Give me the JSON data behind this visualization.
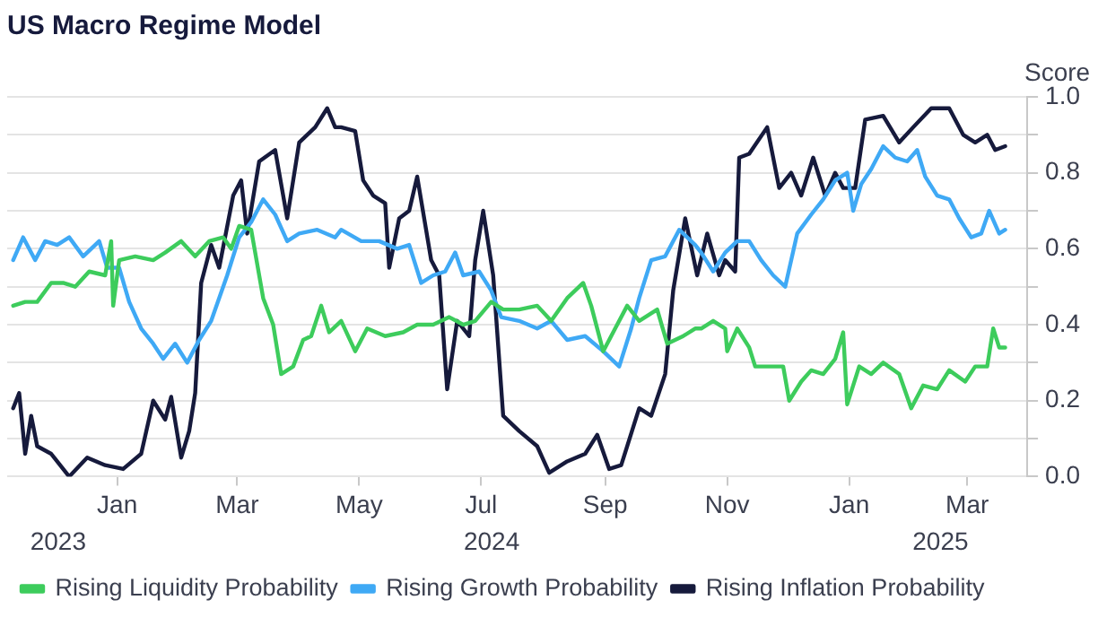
{
  "chart_data": {
    "type": "line",
    "title": "US Macro Regime Model",
    "ylabel": "Score",
    "xlim": [
      "2023-11-07",
      "2025-03-31"
    ],
    "xticks": [
      {
        "value": "2024-01-01",
        "label": "Jan"
      },
      {
        "value": "2024-03-01",
        "label": "Mar"
      },
      {
        "value": "2024-05-01",
        "label": "May"
      },
      {
        "value": "2024-07-01",
        "label": "Jul"
      },
      {
        "value": "2024-09-01",
        "label": "Sep"
      },
      {
        "value": "2024-11-01",
        "label": "Nov"
      },
      {
        "value": "2025-01-01",
        "label": "Jan"
      },
      {
        "value": "2025-03-01",
        "label": "Mar"
      }
    ],
    "annotations": [
      "2023",
      "2024",
      "2025"
    ],
    "ylim": [
      0,
      1
    ],
    "yticks": [
      {
        "value": 0,
        "label": "0.0"
      },
      {
        "value": 0.1,
        "label": null
      },
      0.2,
      {
        "value": 0.3,
        "label": null
      },
      0.4,
      {
        "value": 0.5,
        "label": null
      },
      0.6,
      {
        "value": 0.7,
        "label": null
      },
      0.8,
      {
        "value": 0.9,
        "label": null
      },
      {
        "value": 1,
        "label": "1.0"
      }
    ],
    "grid": "y",
    "legend": "bottom",
    "marker": "none",
    "line_style": "solid",
    "series": [
      {
        "name": "Rising Liquidity Probability",
        "color": "#3dcc5c",
        "x": [
          "2023-11-10",
          "2023-11-16",
          "2023-11-22",
          "2023-11-29",
          "2023-12-05",
          "2023-12-11",
          "2023-12-18",
          "2023-12-26",
          "2023-12-29",
          "2023-12-30",
          "2024-01-02",
          "2024-01-10",
          "2024-01-19",
          "2024-01-25",
          "2024-02-02",
          "2024-02-09",
          "2024-02-16",
          "2024-02-23",
          "2024-02-27",
          "2024-03-02",
          "2024-03-08",
          "2024-03-14",
          "2024-03-19",
          "2024-03-23",
          "2024-03-29",
          "2024-04-03",
          "2024-04-07",
          "2024-04-12",
          "2024-04-16",
          "2024-04-22",
          "2024-04-29",
          "2024-05-05",
          "2024-05-14",
          "2024-05-23",
          "2024-05-30",
          "2024-06-07",
          "2024-06-15",
          "2024-06-22",
          "2024-06-28",
          "2024-07-06",
          "2024-07-12",
          "2024-07-20",
          "2024-07-29",
          "2024-08-05",
          "2024-08-13",
          "2024-08-21",
          "2024-08-25",
          "2024-08-31",
          "2024-09-06",
          "2024-09-12",
          "2024-09-18",
          "2024-09-27",
          "2024-10-02",
          "2024-10-10",
          "2024-10-16",
          "2024-10-19",
          "2024-10-25",
          "2024-10-31",
          "2024-11-01",
          "2024-11-06",
          "2024-11-12",
          "2024-11-15",
          "2024-11-21",
          "2024-11-29",
          "2024-12-02",
          "2024-12-08",
          "2024-12-13",
          "2024-12-19",
          "2024-12-25",
          "2024-12-29",
          "2024-12-31",
          "2025-01-06",
          "2025-01-12",
          "2025-01-18",
          "2025-01-26",
          "2025-02-01",
          "2025-02-07",
          "2025-02-14",
          "2025-02-20",
          "2025-02-28",
          "2025-03-05",
          "2025-03-11",
          "2025-03-14",
          "2025-03-17",
          "2025-03-20"
        ],
        "values": [
          0.45,
          0.46,
          0.46,
          0.51,
          0.51,
          0.5,
          0.54,
          0.53,
          0.62,
          0.45,
          0.57,
          0.58,
          0.57,
          0.59,
          0.62,
          0.58,
          0.62,
          0.63,
          0.6,
          0.66,
          0.65,
          0.47,
          0.4,
          0.27,
          0.29,
          0.36,
          0.37,
          0.45,
          0.38,
          0.41,
          0.33,
          0.39,
          0.37,
          0.38,
          0.4,
          0.4,
          0.42,
          0.4,
          0.41,
          0.46,
          0.44,
          0.44,
          0.45,
          0.41,
          0.47,
          0.51,
          0.45,
          0.33,
          0.39,
          0.45,
          0.41,
          0.44,
          0.35,
          0.37,
          0.39,
          0.39,
          0.41,
          0.39,
          0.33,
          0.39,
          0.34,
          0.29,
          0.29,
          0.29,
          0.2,
          0.25,
          0.28,
          0.27,
          0.31,
          0.38,
          0.19,
          0.29,
          0.27,
          0.3,
          0.27,
          0.18,
          0.24,
          0.23,
          0.28,
          0.25,
          0.29,
          0.29,
          0.39,
          0.34,
          0.34
        ]
      },
      {
        "name": "Rising Growth Probability",
        "color": "#3fa9f5",
        "x": [
          "2023-11-10",
          "2023-11-15",
          "2023-11-21",
          "2023-11-26",
          "2023-12-02",
          "2023-12-08",
          "2023-12-15",
          "2023-12-23",
          "2023-12-27",
          "2024-01-02",
          "2024-01-07",
          "2024-01-13",
          "2024-01-19",
          "2024-01-24",
          "2024-01-30",
          "2024-02-05",
          "2024-02-11",
          "2024-02-17",
          "2024-02-25",
          "2024-03-02",
          "2024-03-08",
          "2024-03-14",
          "2024-03-20",
          "2024-03-26",
          "2024-04-01",
          "2024-04-10",
          "2024-04-19",
          "2024-04-22",
          "2024-05-02",
          "2024-05-11",
          "2024-05-20",
          "2024-05-26",
          "2024-06-01",
          "2024-06-07",
          "2024-06-13",
          "2024-06-18",
          "2024-06-22",
          "2024-06-30",
          "2024-07-06",
          "2024-07-11",
          "2024-07-20",
          "2024-07-29",
          "2024-08-05",
          "2024-08-13",
          "2024-08-22",
          "2024-08-31",
          "2024-09-08",
          "2024-09-14",
          "2024-09-18",
          "2024-09-24",
          "2024-10-01",
          "2024-10-08",
          "2024-10-16",
          "2024-10-19",
          "2024-10-25",
          "2024-10-31",
          "2024-11-06",
          "2024-11-12",
          "2024-11-18",
          "2024-11-24",
          "2024-11-30",
          "2024-12-06",
          "2024-12-13",
          "2024-12-19",
          "2024-12-25",
          "2024-12-31",
          "2025-01-03",
          "2025-01-07",
          "2025-01-12",
          "2025-01-18",
          "2025-01-24",
          "2025-01-30",
          "2025-02-04",
          "2025-02-08",
          "2025-02-14",
          "2025-02-20",
          "2025-02-25",
          "2025-03-03",
          "2025-03-08",
          "2025-03-12",
          "2025-03-17",
          "2025-03-20"
        ],
        "values": [
          0.57,
          0.63,
          0.57,
          0.62,
          0.61,
          0.63,
          0.58,
          0.62,
          0.55,
          0.55,
          0.46,
          0.39,
          0.35,
          0.31,
          0.35,
          0.3,
          0.36,
          0.41,
          0.53,
          0.63,
          0.67,
          0.73,
          0.69,
          0.62,
          0.64,
          0.65,
          0.63,
          0.65,
          0.62,
          0.62,
          0.6,
          0.61,
          0.51,
          0.53,
          0.54,
          0.59,
          0.53,
          0.54,
          0.49,
          0.42,
          0.41,
          0.39,
          0.41,
          0.36,
          0.37,
          0.33,
          0.29,
          0.39,
          0.47,
          0.57,
          0.58,
          0.65,
          0.61,
          0.59,
          0.54,
          0.59,
          0.62,
          0.62,
          0.57,
          0.53,
          0.5,
          0.64,
          0.69,
          0.73,
          0.78,
          0.8,
          0.7,
          0.77,
          0.81,
          0.87,
          0.84,
          0.83,
          0.86,
          0.79,
          0.74,
          0.73,
          0.68,
          0.63,
          0.64,
          0.7,
          0.64,
          0.65
        ]
      },
      {
        "name": "Rising Inflation Probability",
        "color": "#161a3c",
        "x": [
          "2023-11-10",
          "2023-11-13",
          "2023-11-16",
          "2023-11-19",
          "2023-11-22",
          "2023-11-29",
          "2023-12-08",
          "2023-12-17",
          "2023-12-26",
          "2024-01-04",
          "2024-01-13",
          "2024-01-19",
          "2024-01-25",
          "2024-01-28",
          "2024-02-02",
          "2024-02-06",
          "2024-02-09",
          "2024-02-12",
          "2024-02-17",
          "2024-02-21",
          "2024-02-28",
          "2024-03-03",
          "2024-03-06",
          "2024-03-12",
          "2024-03-20",
          "2024-03-26",
          "2024-04-01",
          "2024-04-09",
          "2024-04-15",
          "2024-04-19",
          "2024-04-22",
          "2024-04-29",
          "2024-05-03",
          "2024-05-08",
          "2024-05-14",
          "2024-05-16",
          "2024-05-21",
          "2024-05-26",
          "2024-05-30",
          "2024-06-06",
          "2024-06-10",
          "2024-06-14",
          "2024-06-19",
          "2024-06-25",
          "2024-06-28",
          "2024-07-02",
          "2024-07-07",
          "2024-07-12",
          "2024-07-20",
          "2024-07-29",
          "2024-08-04",
          "2024-08-13",
          "2024-08-22",
          "2024-08-28",
          "2024-09-03",
          "2024-09-09",
          "2024-09-18",
          "2024-09-24",
          "2024-10-01",
          "2024-10-05",
          "2024-10-11",
          "2024-10-17",
          "2024-10-22",
          "2024-10-28",
          "2024-10-31",
          "2024-11-05",
          "2024-11-07",
          "2024-11-12",
          "2024-11-21",
          "2024-11-27",
          "2024-12-03",
          "2024-12-08",
          "2024-12-14",
          "2024-12-20",
          "2024-12-25",
          "2024-12-29",
          "2025-01-04",
          "2025-01-09",
          "2025-01-18",
          "2025-01-26",
          "2025-02-02",
          "2025-02-11",
          "2025-02-20",
          "2025-02-27",
          "2025-03-05",
          "2025-03-11",
          "2025-03-15",
          "2025-03-20"
        ],
        "values": [
          0.18,
          0.22,
          0.06,
          0.16,
          0.08,
          0.06,
          0.0,
          0.05,
          0.03,
          0.02,
          0.06,
          0.2,
          0.15,
          0.21,
          0.05,
          0.12,
          0.22,
          0.51,
          0.61,
          0.55,
          0.74,
          0.78,
          0.64,
          0.83,
          0.86,
          0.68,
          0.88,
          0.92,
          0.97,
          0.92,
          0.92,
          0.91,
          0.78,
          0.74,
          0.72,
          0.55,
          0.68,
          0.7,
          0.79,
          0.57,
          0.53,
          0.23,
          0.41,
          0.37,
          0.57,
          0.7,
          0.53,
          0.16,
          0.12,
          0.08,
          0.01,
          0.04,
          0.06,
          0.11,
          0.02,
          0.03,
          0.18,
          0.16,
          0.27,
          0.49,
          0.68,
          0.53,
          0.64,
          0.53,
          0.57,
          0.54,
          0.84,
          0.85,
          0.92,
          0.76,
          0.8,
          0.74,
          0.84,
          0.74,
          0.8,
          0.76,
          0.76,
          0.94,
          0.95,
          0.88,
          0.92,
          0.97,
          0.97,
          0.9,
          0.88,
          0.9,
          0.86,
          0.87
        ]
      }
    ]
  }
}
